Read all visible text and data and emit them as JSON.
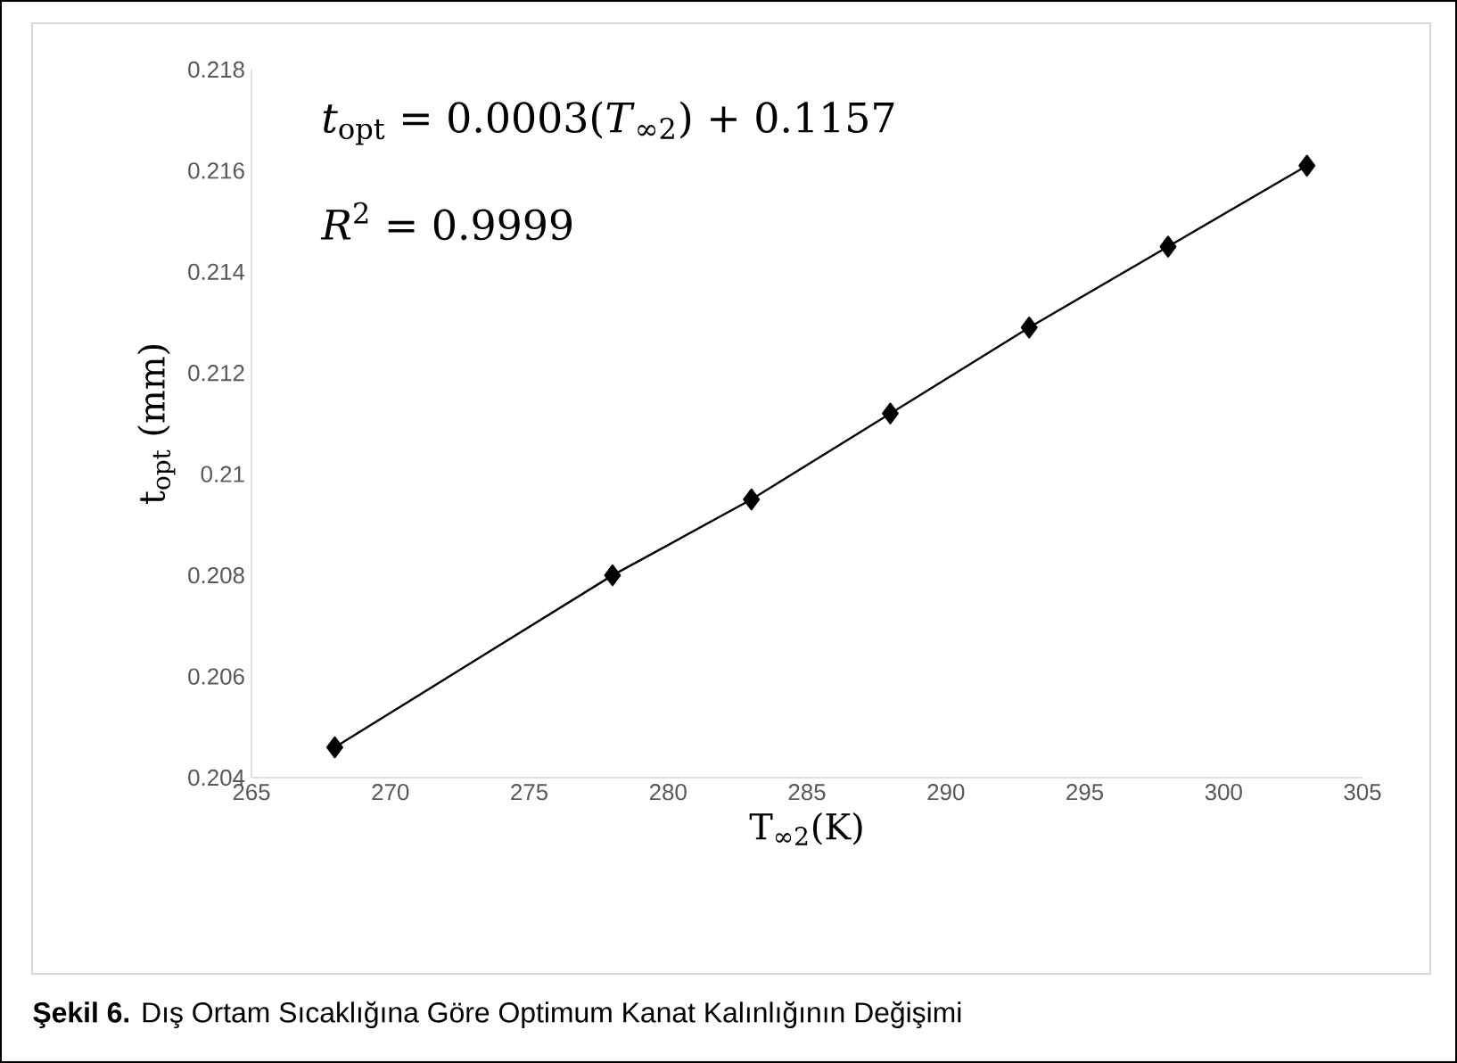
{
  "chart_data": {
    "type": "line",
    "xlabel": "T$_{∞2}$(K)",
    "ylabel": "t$_{opt}$ (mm)",
    "x": [
      268,
      278,
      283,
      288,
      293,
      298,
      303
    ],
    "series": [
      {
        "color": "#000000",
        "values": [
          0.2046,
          0.208,
          0.2095,
          0.2112,
          0.2129,
          0.2145,
          0.2161
        ]
      }
    ],
    "marker": "diamond",
    "line_style": "solid",
    "xlim": [
      265,
      305
    ],
    "xticks": [
      265,
      270,
      275,
      280,
      285,
      290,
      295,
      300,
      305
    ],
    "ylim": [
      0.204,
      0.218
    ],
    "yticks": [
      0.204,
      0.206,
      0.208,
      0.21,
      0.212,
      0.214,
      0.216,
      0.218
    ],
    "grid": false,
    "annotations": [
      "*t*$_{opt}$ = 0.0003(*T*$_{∞2}$) + 0.1157",
      "*R*$^{2}$ = 0.9999",
      "**Şekil 6.** Dış Ortam Sıcaklığına Göre Optimum Kanat Kalınlığının Değişimi"
    ]
  }
}
